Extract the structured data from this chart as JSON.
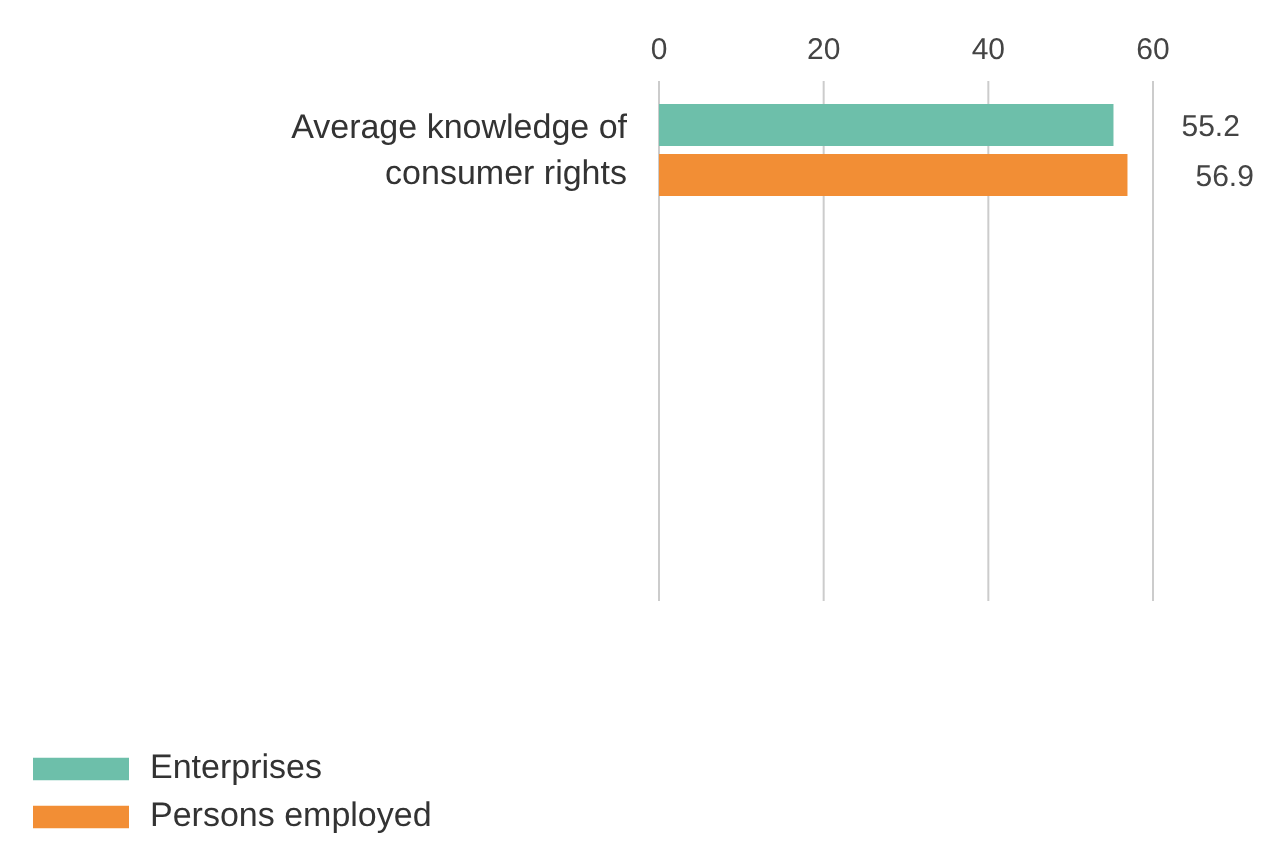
{
  "chart_data": {
    "type": "bar",
    "orientation": "horizontal",
    "categories": [
      "Average knowledge of consumer rights"
    ],
    "series": [
      {
        "name": "Enterprises",
        "color": "#6dbfaa",
        "values": [
          55.2
        ]
      },
      {
        "name": "Persons employed",
        "color": "#f28e35",
        "values": [
          56.9
        ]
      }
    ],
    "xlim": [
      0,
      60
    ],
    "xticks": [
      0,
      20,
      40,
      60
    ],
    "grid": "x",
    "data_labels": true,
    "legend": "bottom left"
  }
}
